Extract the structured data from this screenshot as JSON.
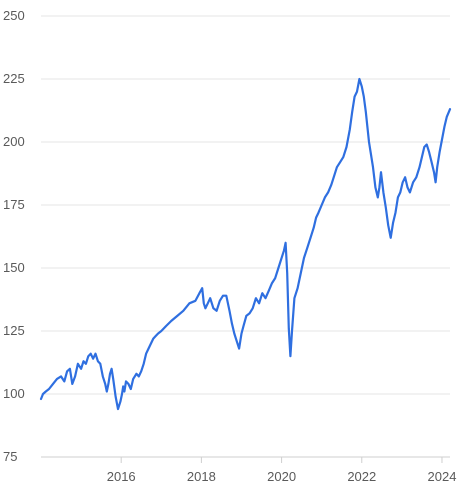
{
  "colors": {
    "series": "#2f6fe0",
    "grid": "#e6e6e6",
    "text": "#5a5a5a"
  },
  "chart_data": {
    "type": "line",
    "title": "",
    "xlabel": "",
    "ylabel": "",
    "grid": true,
    "legend": "none",
    "xlim": [
      2014.0,
      2024.2
    ],
    "ylim": [
      75,
      250
    ],
    "y_ticks": [
      250,
      225,
      200,
      175,
      150,
      125,
      100,
      75
    ],
    "x_ticks": [
      2016,
      2018,
      2020,
      2022,
      2024
    ],
    "y_tick_labels": [
      "250",
      "225",
      "200",
      "175",
      "150",
      "125",
      "100",
      "75"
    ],
    "x_tick_labels": [
      "2016",
      "2018",
      "2020",
      "2022",
      "2024"
    ],
    "series": [
      {
        "x": [
          2014.0,
          2014.05,
          2014.12,
          2014.2,
          2014.3,
          2014.4,
          2014.5,
          2014.58,
          2014.65,
          2014.72,
          2014.78,
          2014.85,
          2014.92,
          2015.0,
          2015.06,
          2015.12,
          2015.18,
          2015.24,
          2015.3,
          2015.36,
          2015.42,
          2015.48,
          2015.54,
          2015.6,
          2015.64,
          2015.68,
          2015.72,
          2015.76,
          2015.8,
          2015.86,
          2015.92,
          2015.98,
          2016.02,
          2016.05,
          2016.08,
          2016.12,
          2016.18,
          2016.24,
          2016.3,
          2016.38,
          2016.44,
          2016.5,
          2016.56,
          2016.62,
          2016.68,
          2016.74,
          2016.8,
          2016.86,
          2016.92,
          2017.0,
          2017.12,
          2017.25,
          2017.4,
          2017.55,
          2017.7,
          2017.85,
          2017.95,
          2018.02,
          2018.06,
          2018.1,
          2018.16,
          2018.22,
          2018.3,
          2018.38,
          2018.46,
          2018.54,
          2018.62,
          2018.7,
          2018.76,
          2018.82,
          2018.88,
          2018.94,
          2019.0,
          2019.05,
          2019.12,
          2019.2,
          2019.28,
          2019.36,
          2019.44,
          2019.52,
          2019.6,
          2019.68,
          2019.76,
          2019.84,
          2019.92,
          2020.0,
          2020.06,
          2020.1,
          2020.14,
          2020.18,
          2020.22,
          2020.26,
          2020.32,
          2020.4,
          2020.48,
          2020.56,
          2020.64,
          2020.72,
          2020.8,
          2020.86,
          2020.92,
          2021.0,
          2021.08,
          2021.16,
          2021.24,
          2021.3,
          2021.38,
          2021.46,
          2021.54,
          2021.62,
          2021.7,
          2021.76,
          2021.82,
          2021.88,
          2021.94,
          2022.0,
          2022.05,
          2022.1,
          2022.14,
          2022.18,
          2022.22,
          2022.28,
          2022.34,
          2022.4,
          2022.44,
          2022.48,
          2022.54,
          2022.6,
          2022.66,
          2022.72,
          2022.78,
          2022.84,
          2022.9,
          2022.96,
          2023.02,
          2023.08,
          2023.14,
          2023.2,
          2023.28,
          2023.36,
          2023.44,
          2023.5,
          2023.56,
          2023.62,
          2023.68,
          2023.74,
          2023.8,
          2023.84,
          2023.88,
          2023.94,
          2024.0,
          2024.06,
          2024.12,
          2024.2
        ],
        "values": [
          98,
          100,
          101,
          102,
          104,
          106,
          107,
          105,
          109,
          110,
          104,
          107,
          112,
          110,
          113,
          112,
          115,
          116,
          114,
          116,
          113,
          112,
          107,
          104,
          101,
          104,
          108,
          110,
          106,
          99,
          94,
          97,
          100,
          103,
          101,
          105,
          104,
          102,
          106,
          108,
          107,
          109,
          112,
          116,
          118,
          120,
          122,
          123,
          124,
          125,
          127,
          129,
          131,
          133,
          136,
          137,
          140,
          142,
          136,
          134,
          136,
          138,
          134,
          133,
          137,
          139,
          139,
          133,
          128,
          124,
          121,
          118,
          124,
          127,
          131,
          132,
          134,
          138,
          136,
          140,
          138,
          141,
          144,
          146,
          150,
          154,
          157,
          160,
          148,
          126,
          115,
          125,
          138,
          142,
          148,
          154,
          158,
          162,
          166,
          170,
          172,
          175,
          178,
          180,
          183,
          186,
          190,
          192,
          194,
          198,
          205,
          212,
          218,
          220,
          225,
          222,
          218,
          212,
          206,
          200,
          196,
          190,
          182,
          178,
          182,
          188,
          180,
          174,
          167,
          162,
          168,
          172,
          178,
          180,
          184,
          186,
          182,
          180,
          184,
          186,
          190,
          194,
          198,
          199,
          196,
          192,
          188,
          184,
          190,
          196,
          201,
          206,
          210,
          213
        ]
      }
    ]
  }
}
